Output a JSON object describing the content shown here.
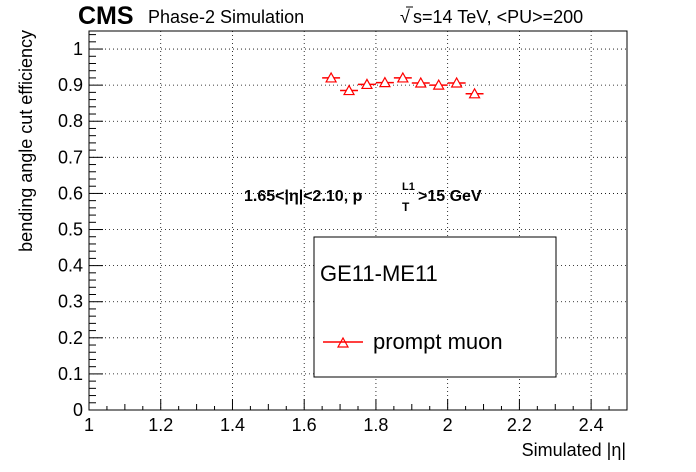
{
  "header": {
    "experiment": "CMS",
    "subtitle": "Phase-2 Simulation",
    "energy_sqrt": "√",
    "energy_label": "s=14 TeV, <PU>=200"
  },
  "annotation": {
    "prefix": "1.65<|η|<2.10, p",
    "sub": "T",
    "sup": "L1",
    "suffix": ">15 GeV"
  },
  "legend": {
    "header": "GE11-ME11",
    "entry": "prompt muon"
  },
  "colors": {
    "series": "#ff0000",
    "axis": "#000000",
    "grid": "#000000"
  },
  "chart_data": {
    "type": "scatter",
    "xlabel": "Simulated |η|",
    "ylabel": "bending angle cut efficiency",
    "xlim": [
      1.0,
      2.5
    ],
    "ylim": [
      0.0,
      1.05
    ],
    "xticks": [
      "1",
      "1.2",
      "1.4",
      "1.6",
      "1.8",
      "2",
      "2.2",
      "2.4"
    ],
    "yticks": [
      "0",
      "0.1",
      "0.2",
      "0.3",
      "0.4",
      "0.5",
      "0.6",
      "0.7",
      "0.8",
      "0.9",
      "1"
    ],
    "grid": true,
    "legend_position": "center-right",
    "marker": "open-triangle",
    "series": [
      {
        "name": "prompt muon",
        "x": [
          1.675,
          1.725,
          1.775,
          1.825,
          1.875,
          1.925,
          1.975,
          2.025,
          2.075
        ],
        "xerr": [
          0.025,
          0.025,
          0.025,
          0.025,
          0.025,
          0.025,
          0.025,
          0.025,
          0.025
        ],
        "y": [
          0.92,
          0.885,
          0.902,
          0.907,
          0.92,
          0.906,
          0.9,
          0.906,
          0.876
        ]
      }
    ]
  }
}
